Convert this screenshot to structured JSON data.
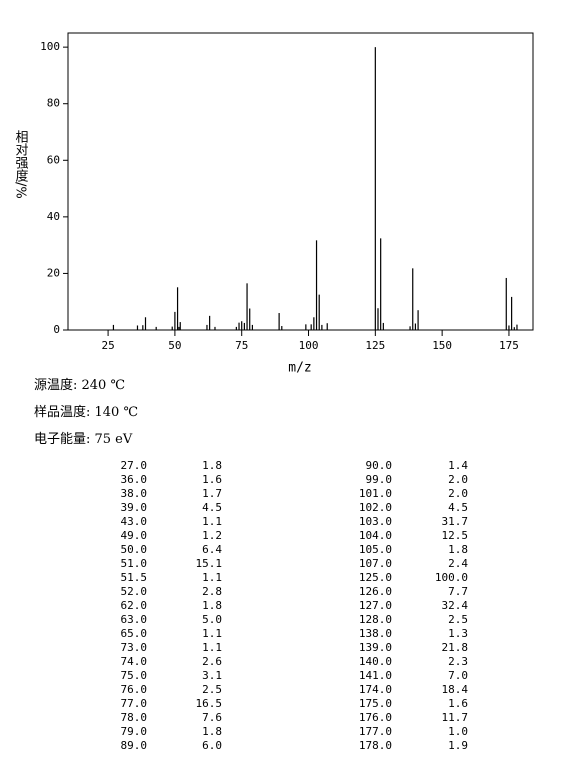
{
  "chart_data": {
    "type": "bar",
    "x": [
      27,
      36,
      38,
      39,
      43,
      49,
      50,
      51,
      51.5,
      52,
      62,
      63,
      65,
      73,
      74,
      75,
      76,
      77,
      78,
      79,
      89,
      90,
      99,
      101,
      102,
      103,
      104,
      105,
      107,
      125,
      126,
      127,
      128,
      138,
      139,
      140,
      141,
      174,
      175,
      176,
      177,
      178
    ],
    "x_labels": [
      "27.0",
      "36.0",
      "38.0",
      "39.0",
      "43.0",
      "49.0",
      "50.0",
      "51.0",
      "51.5",
      "52.0",
      "62.0",
      "63.0",
      "65.0",
      "73.0",
      "74.0",
      "75.0",
      "76.0",
      "77.0",
      "78.0",
      "79.0",
      "89.0",
      "90.0",
      "99.0",
      "101.0",
      "102.0",
      "103.0",
      "104.0",
      "105.0",
      "107.0",
      "125.0",
      "126.0",
      "127.0",
      "128.0",
      "138.0",
      "139.0",
      "140.0",
      "141.0",
      "174.0",
      "175.0",
      "176.0",
      "177.0",
      "178.0"
    ],
    "values": [
      1.8,
      1.6,
      1.7,
      4.5,
      1.1,
      1.2,
      6.4,
      15.1,
      1.1,
      2.8,
      1.8,
      5.0,
      1.1,
      1.1,
      2.6,
      3.1,
      2.5,
      16.5,
      7.6,
      1.8,
      6.0,
      1.4,
      2.0,
      2.0,
      4.5,
      31.7,
      12.5,
      1.8,
      2.4,
      100.0,
      7.7,
      32.4,
      2.5,
      1.3,
      21.8,
      2.3,
      7.0,
      18.4,
      1.6,
      11.7,
      1.0,
      1.9
    ],
    "value_labels": [
      "1.8",
      "1.6",
      "1.7",
      "4.5",
      "1.1",
      "1.2",
      "6.4",
      "15.1",
      "1.1",
      "2.8",
      "1.8",
      "5.0",
      "1.1",
      "1.1",
      "2.6",
      "3.1",
      "2.5",
      "16.5",
      "7.6",
      "1.8",
      "6.0",
      "1.4",
      "2.0",
      "2.0",
      "4.5",
      "31.7",
      "12.5",
      "1.8",
      "2.4",
      "100.0",
      "7.7",
      "32.4",
      "2.5",
      "1.3",
      "21.8",
      "2.3",
      "7.0",
      "18.4",
      "1.6",
      "11.7",
      "1.0",
      "1.9"
    ],
    "color": "#000000",
    "xlabel": "m/z",
    "ylabel": "相对强度/%",
    "xlim": [
      10,
      184
    ],
    "xticks": [
      25,
      50,
      75,
      100,
      125,
      150,
      175
    ],
    "ylim": [
      0,
      105
    ],
    "yticks": [
      0,
      20,
      40,
      60,
      80,
      100
    ]
  },
  "notes": [
    "源温度: 240 ℃",
    "样品温度: 140 ℃",
    "电子能量: 75 eV"
  ]
}
